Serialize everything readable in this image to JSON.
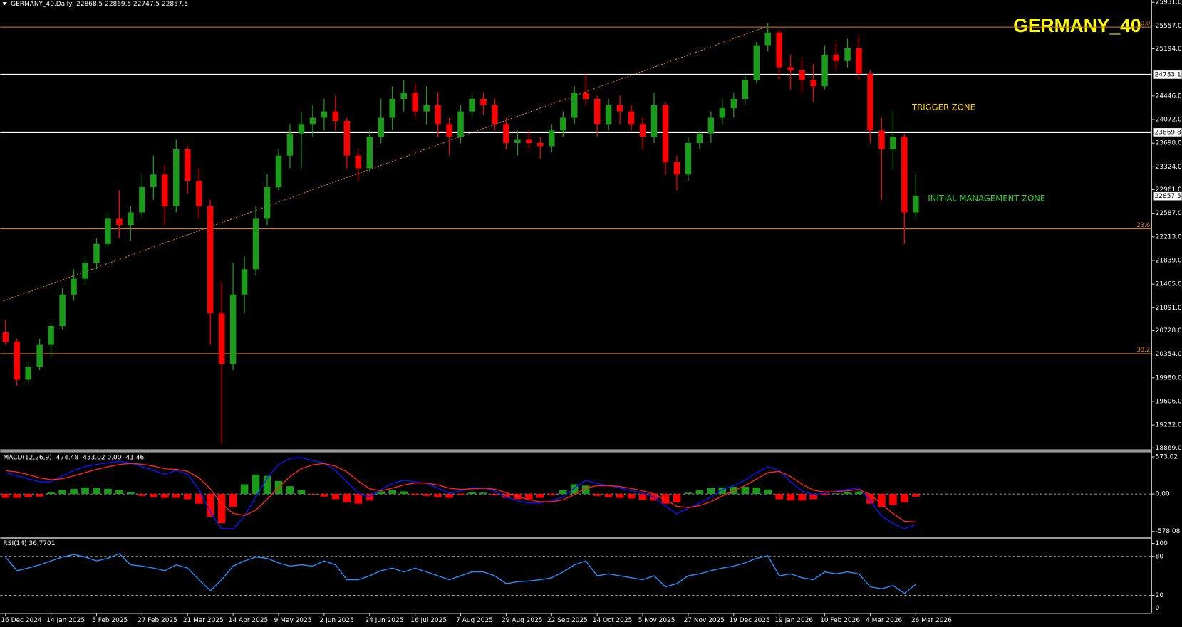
{
  "header": "GERMANY_40,Daily  22868.5 22869.5 22747.5 22857.5",
  "annotations": [
    "TRIGGER ZONE",
    "INITIAL MANAGEMENT ZONE"
  ],
  "chart_data": [
    {
      "type": "candlestick",
      "title": "GERMANY_40",
      "categories": [
        "16 Dec 2024",
        null,
        null,
        null,
        "14 Jan 2025",
        null,
        null,
        null,
        "5 Feb 2025",
        null,
        null,
        null,
        "27 Feb 2025",
        null,
        null,
        null,
        "21 Mar 2025",
        null,
        null,
        null,
        "14 Apr 2025",
        null,
        null,
        null,
        "9 May 2025",
        null,
        null,
        null,
        "2 Jun 2025",
        null,
        null,
        null,
        "24 Jun 2025",
        null,
        null,
        null,
        "16 Jul 2025",
        null,
        null,
        null,
        "7 Aug 2025",
        null,
        null,
        null,
        "29 Aug 2025",
        null,
        null,
        null,
        "22 Sep 2025",
        null,
        null,
        null,
        "14 Oct 2025",
        null,
        null,
        null,
        "5 Nov 2025",
        null,
        null,
        null,
        "27 Nov 2025",
        null,
        null,
        null,
        "19 Dec 2025",
        null,
        null,
        null,
        "19 Jan 2026",
        null,
        null,
        null,
        "10 Feb 2026",
        null,
        null,
        null,
        "4 Mar 2026",
        null,
        null,
        null,
        "26 Mar 2026"
      ],
      "ohlc": [
        [
          20700,
          20900,
          20500,
          20550
        ],
        [
          20550,
          20600,
          19850,
          19950
        ],
        [
          19950,
          20250,
          19900,
          20150
        ],
        [
          20150,
          20600,
          20100,
          20500
        ],
        [
          20500,
          20850,
          20300,
          20800
        ],
        [
          20800,
          21400,
          20750,
          21300
        ],
        [
          21300,
          21700,
          21200,
          21550
        ],
        [
          21550,
          21900,
          21450,
          21800
        ],
        [
          21800,
          22200,
          21700,
          22100
        ],
        [
          22100,
          22600,
          22050,
          22500
        ],
        [
          22500,
          22950,
          22200,
          22400
        ],
        [
          22400,
          22700,
          22150,
          22600
        ],
        [
          22600,
          23200,
          22500,
          23000
        ],
        [
          23000,
          23500,
          22800,
          23200
        ],
        [
          23200,
          23350,
          22400,
          22700
        ],
        [
          22700,
          23750,
          22600,
          23600
        ],
        [
          23600,
          23650,
          22900,
          23100
        ],
        [
          23100,
          23300,
          22500,
          22700
        ],
        [
          22700,
          22800,
          20500,
          21000
        ],
        [
          21000,
          21500,
          18950,
          20200
        ],
        [
          20200,
          21800,
          20100,
          21300
        ],
        [
          21300,
          21900,
          21000,
          21700
        ],
        [
          21700,
          22700,
          21600,
          22500
        ],
        [
          22500,
          23200,
          22400,
          23000
        ],
        [
          23000,
          23600,
          22950,
          23500
        ],
        [
          23500,
          24000,
          23300,
          23850
        ],
        [
          23850,
          24200,
          23300,
          24000
        ],
        [
          24000,
          24300,
          23800,
          24100
        ],
        [
          24100,
          24400,
          23900,
          24200
        ],
        [
          24200,
          24450,
          23900,
          24050
        ],
        [
          24050,
          24100,
          23300,
          23500
        ],
        [
          23500,
          23600,
          23100,
          23300
        ],
        [
          23300,
          23900,
          23250,
          23800
        ],
        [
          23800,
          24400,
          23700,
          24100
        ],
        [
          24100,
          24600,
          23900,
          24400
        ],
        [
          24400,
          24700,
          24200,
          24500
        ],
        [
          24500,
          24650,
          24100,
          24200
        ],
        [
          24200,
          24600,
          24000,
          24300
        ],
        [
          24300,
          24500,
          23800,
          24000
        ],
        [
          24000,
          24100,
          23500,
          23800
        ],
        [
          23800,
          24300,
          23700,
          24200
        ],
        [
          24200,
          24500,
          24100,
          24400
        ],
        [
          24400,
          24500,
          24150,
          24300
        ],
        [
          24300,
          24400,
          23900,
          24000
        ],
        [
          24000,
          24100,
          23600,
          23700
        ],
        [
          23700,
          23900,
          23500,
          23750
        ],
        [
          23750,
          23900,
          23600,
          23700
        ],
        [
          23700,
          23800,
          23450,
          23650
        ],
        [
          23650,
          24000,
          23550,
          23900
        ],
        [
          23900,
          24200,
          23800,
          24100
        ],
        [
          24100,
          24600,
          24000,
          24500
        ],
        [
          24500,
          24800,
          24300,
          24400
        ],
        [
          24400,
          24450,
          23800,
          24000
        ],
        [
          24000,
          24400,
          23900,
          24300
        ],
        [
          24300,
          24450,
          24000,
          24200
        ],
        [
          24200,
          24300,
          23900,
          24000
        ],
        [
          24000,
          24100,
          23600,
          23800
        ],
        [
          23800,
          24500,
          23700,
          24300
        ],
        [
          24300,
          24350,
          23200,
          23400
        ],
        [
          23400,
          23500,
          22950,
          23200
        ],
        [
          23200,
          23800,
          23100,
          23700
        ],
        [
          23700,
          23900,
          23600,
          23850
        ],
        [
          23850,
          24200,
          23700,
          24100
        ],
        [
          24100,
          24400,
          24000,
          24250
        ],
        [
          24250,
          24500,
          24100,
          24400
        ],
        [
          24400,
          24800,
          24300,
          24700
        ],
        [
          24700,
          25300,
          24650,
          25250
        ],
        [
          25250,
          25600,
          25150,
          25450
        ],
        [
          25450,
          25500,
          24700,
          24900
        ],
        [
          24900,
          25100,
          24550,
          24850
        ],
        [
          24850,
          25050,
          24500,
          24700
        ],
        [
          24700,
          24950,
          24350,
          24600
        ],
        [
          24600,
          25250,
          24550,
          25100
        ],
        [
          25100,
          25300,
          24850,
          25000
        ],
        [
          25000,
          25350,
          24900,
          25200
        ],
        [
          25200,
          25400,
          24700,
          24800
        ],
        [
          24800,
          24850,
          23700,
          23900
        ],
        [
          23900,
          24100,
          22800,
          23600
        ],
        [
          23600,
          24200,
          23300,
          23800
        ],
        [
          23800,
          23850,
          22100,
          22600
        ],
        [
          22600,
          23200,
          22500,
          22857.5
        ]
      ],
      "up_color": "#1a9c1a",
      "down_color": "#ff0000",
      "ylim": [
        18869,
        25931
      ],
      "yticks": [
        {
          "value": 25931,
          "label": "25931.0"
        },
        {
          "value": 25557,
          "label": "25557.0"
        },
        {
          "value": 25194,
          "label": "25194.0"
        },
        {
          "value": 24446,
          "label": "24446.0"
        },
        {
          "value": 24072,
          "label": "24072.0"
        },
        {
          "value": 23698,
          "label": "23698.0"
        },
        {
          "value": 23324,
          "label": "23324.0"
        },
        {
          "value": 22961,
          "label": "22961.0"
        },
        {
          "value": 22587,
          "label": "22587.0"
        },
        {
          "value": 22213,
          "label": "22213.0"
        },
        {
          "value": 21839,
          "label": "21839.0"
        },
        {
          "value": 21465,
          "label": "21465.0"
        },
        {
          "value": 21091,
          "label": "21091.0"
        },
        {
          "value": 20728,
          "label": "20728.0"
        },
        {
          "value": 20354,
          "label": "20354.0"
        },
        {
          "value": 19980,
          "label": "19980.0"
        },
        {
          "value": 19606,
          "label": "19606.0"
        },
        {
          "value": 19232,
          "label": "19232.0"
        },
        {
          "value": 18869,
          "label": "18869.0"
        }
      ],
      "fib_levels": [
        {
          "value": 25537,
          "label": "0.0"
        },
        {
          "value": 22340,
          "label": "23.6"
        },
        {
          "value": 20362,
          "label": "38.2"
        }
      ],
      "fib_color": "#e07a10",
      "price_levels": [
        24783.1,
        23869.8
      ],
      "last_price": 22857.5,
      "trendline": {
        "x": [
          -0.2,
          66.8
        ],
        "y": [
          21195,
          25537
        ]
      },
      "grid": false
    },
    {
      "type": "macd",
      "title": "MACD(12,26,9) -474.48 -433.02 0.00 -41.46",
      "series": [
        {
          "color": "#1010ff",
          "values": [
            328,
            281,
            234,
            187,
            187,
            281,
            363,
            422,
            456,
            480,
            503,
            480,
            422,
            363,
            304,
            363,
            304,
            70,
            -281,
            -538,
            -538,
            -339,
            -47,
            246,
            456,
            550,
            562,
            515,
            480,
            363,
            187,
            12,
            -47,
            70,
            164,
            211,
            187,
            164,
            94,
            12,
            47,
            94,
            94,
            47,
            -47,
            -105,
            -140,
            -140,
            -105,
            -47,
            94,
            211,
            164,
            129,
            94,
            47,
            12,
            -47,
            -187,
            -304,
            -222,
            -140,
            -47,
            70,
            129,
            211,
            328,
            422,
            363,
            187,
            47,
            -12,
            12,
            47,
            70,
            94,
            -105,
            -339,
            -456,
            -538,
            -474.48
          ]
        },
        {
          "color": "#ff2020",
          "values": [
            360,
            340,
            300,
            250,
            220,
            235,
            280,
            330,
            380,
            420,
            455,
            470,
            460,
            430,
            390,
            380,
            350,
            250,
            80,
            -150,
            -300,
            -330,
            -250,
            -80,
            100,
            270,
            390,
            450,
            470,
            430,
            340,
            200,
            80,
            50,
            90,
            140,
            170,
            170,
            140,
            90,
            70,
            80,
            90,
            75,
            20,
            -40,
            -90,
            -120,
            -120,
            -90,
            -10,
            90,
            130,
            130,
            115,
            85,
            50,
            0,
            -90,
            -190,
            -210,
            -180,
            -120,
            -30,
            50,
            130,
            230,
            330,
            350,
            270,
            150,
            60,
            30,
            35,
            50,
            70,
            -10,
            -160,
            -300,
            -420,
            -433.02
          ]
        }
      ],
      "histogram": {
        "values": [
          -60,
          -60,
          -50,
          -40,
          30,
          60,
          80,
          100,
          90,
          80,
          60,
          30,
          -30,
          -50,
          -60,
          -60,
          -80,
          -150,
          -350,
          -450,
          -200,
          150,
          300,
          280,
          200,
          120,
          60,
          -10,
          -40,
          -80,
          -130,
          -150,
          -100,
          40,
          60,
          40,
          -20,
          -30,
          -50,
          -60,
          -20,
          30,
          20,
          -20,
          -60,
          -80,
          -80,
          -60,
          -20,
          60,
          150,
          130,
          -30,
          -50,
          -60,
          -70,
          -90,
          -100,
          -150,
          -130,
          20,
          60,
          90,
          100,
          110,
          110,
          100,
          70,
          -80,
          -100,
          -100,
          -80,
          -20,
          10,
          30,
          40,
          -150,
          -200,
          -170,
          -130,
          -41.46
        ],
        "up_color": "#1a9c1a",
        "down_color": "#ff0000"
      },
      "ylim": [
        -578.08,
        573.02
      ],
      "yticks": [
        573.02,
        {
          "value": 0,
          "label": "0.00"
        },
        -578.08
      ],
      "grid": true
    },
    {
      "type": "line",
      "title": "RSI(14) 36.7701",
      "color": "#1e90ff",
      "values": [
        79,
        58,
        62,
        67,
        73,
        79,
        83,
        79,
        73,
        77,
        84,
        67,
        65,
        62,
        58,
        67,
        62,
        44,
        27,
        44,
        65,
        73,
        79,
        77,
        70,
        65,
        67,
        65,
        73,
        67,
        44,
        44,
        50,
        58,
        62,
        56,
        62,
        56,
        50,
        44,
        50,
        56,
        56,
        50,
        38,
        41,
        42,
        44,
        47,
        56,
        67,
        73,
        50,
        53,
        50,
        47,
        44,
        50,
        33,
        38,
        50,
        53,
        58,
        62,
        65,
        70,
        77,
        81,
        50,
        53,
        47,
        44,
        56,
        53,
        56,
        53,
        33,
        30,
        35,
        23,
        36.7701
      ],
      "ylim": [
        0,
        100
      ],
      "yticks": [
        100,
        80,
        20,
        0
      ],
      "grid": true
    }
  ]
}
